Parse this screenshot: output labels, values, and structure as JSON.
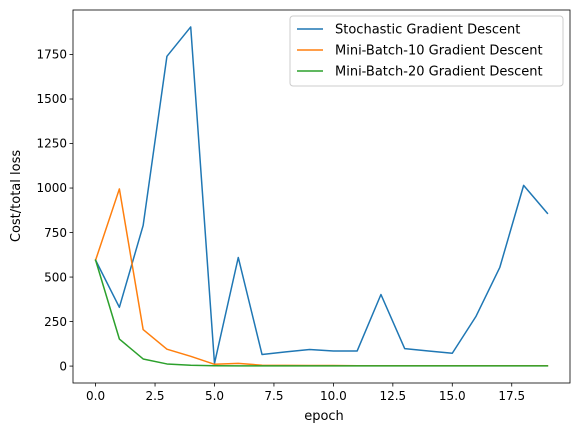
{
  "chart_data": {
    "type": "line",
    "title": "",
    "xlabel": "epoch",
    "ylabel": "Cost/total loss",
    "xlim": [
      -0.95,
      19.95
    ],
    "ylim": [
      -95,
      2000
    ],
    "x_ticks": [
      0.0,
      2.5,
      5.0,
      7.5,
      10.0,
      12.5,
      15.0,
      17.5
    ],
    "x_tick_labels": [
      "0.0",
      "2.5",
      "5.0",
      "7.5",
      "10.0",
      "12.5",
      "15.0",
      "17.5"
    ],
    "y_ticks": [
      0,
      250,
      500,
      750,
      1000,
      1250,
      1500,
      1750
    ],
    "y_tick_labels": [
      "0",
      "250",
      "500",
      "750",
      "1000",
      "1250",
      "1500",
      "1750"
    ],
    "grid": false,
    "legend_position": "top-right",
    "x": [
      0,
      1,
      2,
      3,
      4,
      5,
      6,
      7,
      8,
      9,
      10,
      11,
      12,
      13,
      14,
      15,
      16,
      17,
      18,
      19
    ],
    "series": [
      {
        "name": "Stochastic Gradient Descent",
        "color": "#1f77b4",
        "values": [
          595,
          330,
          790,
          1740,
          1905,
          15,
          610,
          65,
          80,
          93,
          85,
          85,
          402,
          98,
          85,
          72,
          280,
          555,
          1015,
          858
        ]
      },
      {
        "name": "Mini-Batch-10 Gradient Descent",
        "color": "#ff7f0e",
        "values": [
          595,
          995,
          205,
          95,
          55,
          10,
          15,
          5,
          4,
          3,
          3,
          2,
          2,
          2,
          2,
          2,
          2,
          2,
          2,
          2
        ]
      },
      {
        "name": "Mini-Batch-20 Gradient Descent",
        "color": "#2ca02c",
        "values": [
          595,
          152,
          40,
          12,
          5,
          2,
          1,
          1,
          1,
          1,
          1,
          1,
          1,
          1,
          1,
          1,
          1,
          1,
          1,
          1
        ]
      }
    ]
  }
}
